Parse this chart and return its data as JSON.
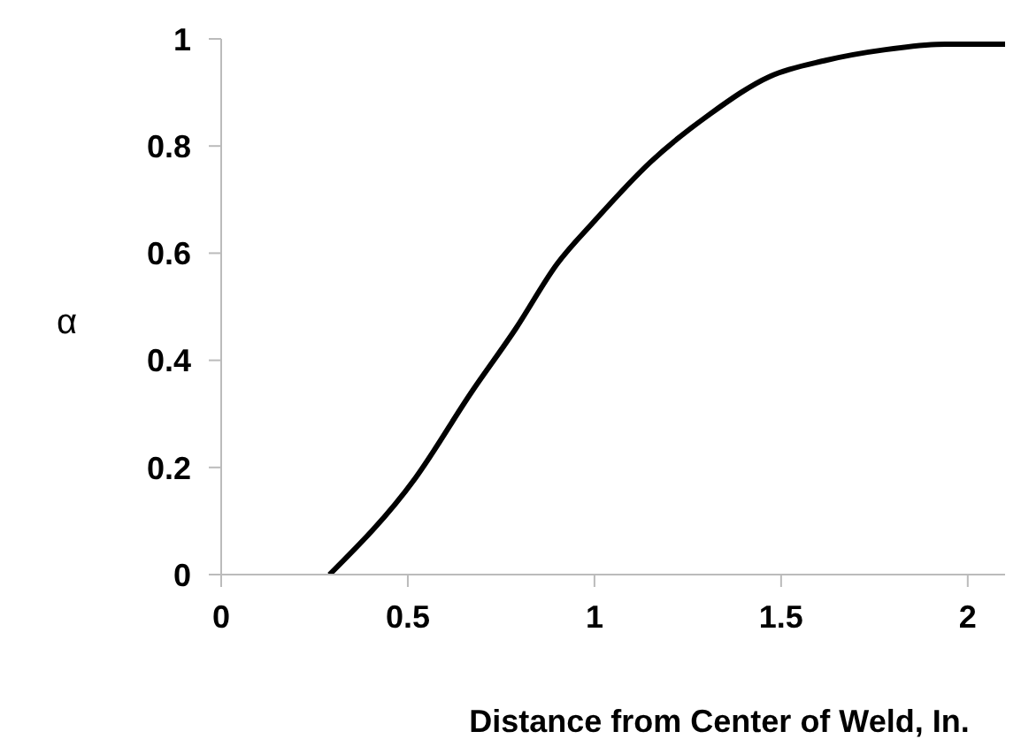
{
  "chart_data": {
    "type": "line",
    "xlabel": "Distance from Center of Weld, In.",
    "ylabel": "α",
    "x": [
      0.29,
      0.52,
      0.67,
      0.79,
      0.9,
      1.0,
      1.15,
      1.31,
      1.47,
      1.62,
      1.78,
      1.94,
      2.1
    ],
    "series": [
      {
        "color": "#000000",
        "values": [
          0,
          0.18,
          0.34,
          0.46,
          0.58,
          0.66,
          0.77,
          0.86,
          0.93,
          0.96,
          0.98,
          0.99,
          0.99
        ]
      }
    ],
    "xlim": [
      0,
      2.1
    ],
    "xticks": [
      0,
      0.5,
      1,
      1.5,
      2
    ],
    "ylim": [
      0,
      1
    ],
    "yticks": [
      0,
      0.2,
      0.4,
      0.6,
      0.8,
      1
    ],
    "grid": false,
    "legend": false,
    "marker": "none",
    "line_style": "solid"
  }
}
